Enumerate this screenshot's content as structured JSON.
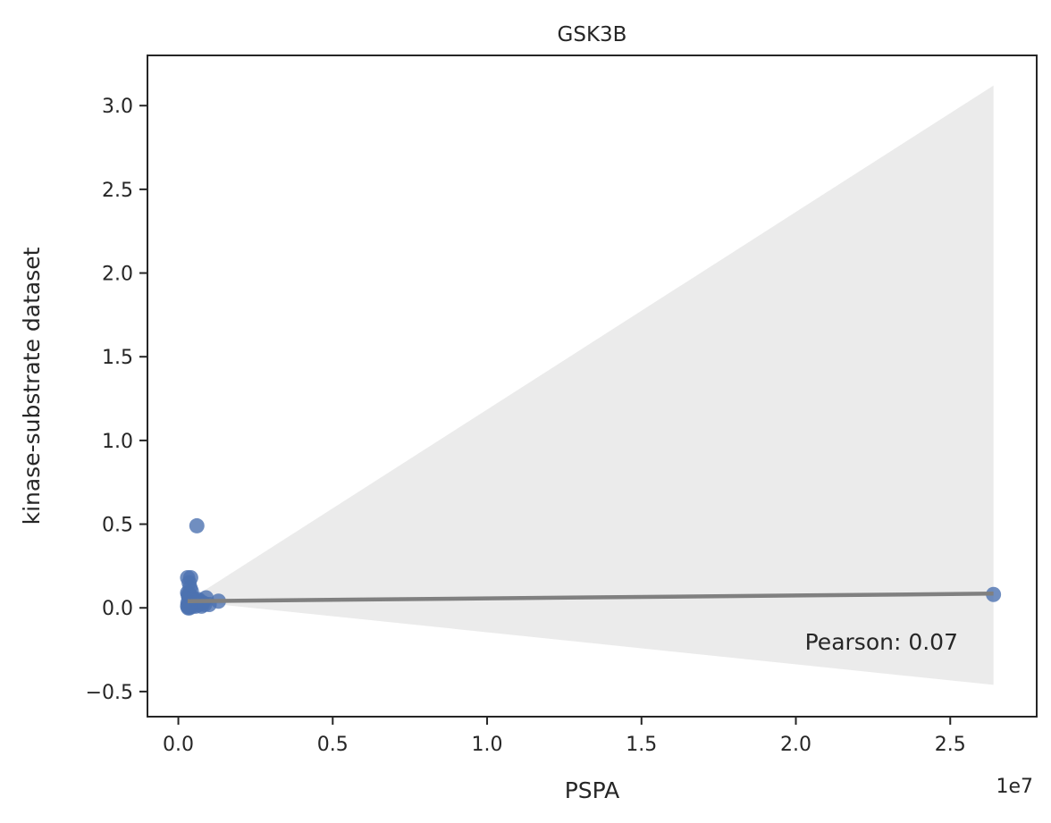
{
  "chart_data": {
    "type": "scatter",
    "title": "GSK3B",
    "xlabel": "PSPA",
    "ylabel": "kinase-substrate dataset",
    "x_offset_label": "1e7",
    "xlim": [
      -1000000,
      27800000
    ],
    "ylim": [
      -0.65,
      3.3
    ],
    "x_ticks": [
      0,
      5000000,
      10000000,
      15000000,
      20000000,
      25000000
    ],
    "x_tick_labels": [
      "0.0",
      "0.5",
      "1.0",
      "1.5",
      "2.0",
      "2.5"
    ],
    "y_ticks": [
      -0.5,
      0.0,
      0.5,
      1.0,
      1.5,
      2.0,
      2.5,
      3.0
    ],
    "y_tick_labels": [
      "−0.5",
      "0.0",
      "0.5",
      "1.0",
      "1.5",
      "2.0",
      "2.5",
      "3.0"
    ],
    "grid": false,
    "legend": "none",
    "annotation": "Pearson: 0.07",
    "colors": {
      "points": "#4c72b0",
      "regression": "#808080",
      "ci_band": "#ebebeb"
    },
    "regression": {
      "x": [
        300000,
        26400000
      ],
      "y": [
        0.04,
        0.085
      ],
      "ci_lower": [
        0.04,
        -0.46
      ],
      "ci_upper": [
        0.04,
        3.12
      ]
    },
    "series": [
      {
        "x": [
          600000,
          300000,
          400000,
          350000,
          380000,
          420000,
          300000,
          320000,
          330000,
          340000,
          360000,
          370000,
          390000,
          410000,
          430000,
          450000,
          470000,
          500000,
          550000,
          600000,
          650000,
          700000,
          800000,
          900000,
          1000000,
          1300000,
          310000,
          330000,
          350000,
          380000,
          400000,
          430000,
          460000,
          490000,
          520000,
          560000,
          620000,
          680000,
          750000,
          850000,
          300000,
          320000,
          340000,
          360000,
          380000,
          26400000
        ],
        "y": [
          0.49,
          0.18,
          0.18,
          0.15,
          0.12,
          0.1,
          0.09,
          0.08,
          0.07,
          0.06,
          0.05,
          0.08,
          0.07,
          0.06,
          0.05,
          0.04,
          0.06,
          0.05,
          0.04,
          0.03,
          0.05,
          0.04,
          0.03,
          0.06,
          0.02,
          0.04,
          0.03,
          0.02,
          0.01,
          0.02,
          0.03,
          0.02,
          0.01,
          0.03,
          0.02,
          0.01,
          0.04,
          0.02,
          0.01,
          0.02,
          0.01,
          0.0,
          0.01,
          0.0,
          0.02,
          0.08
        ]
      }
    ]
  }
}
